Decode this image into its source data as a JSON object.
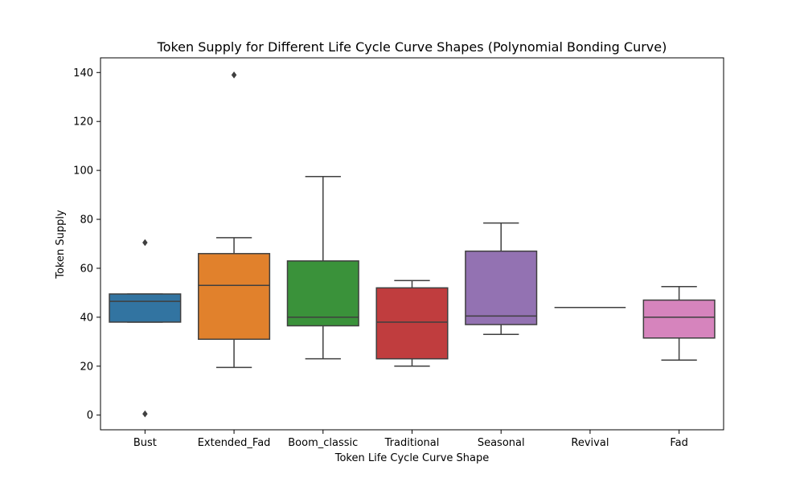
{
  "chart_data": {
    "type": "box",
    "title": "Token Supply for Different Life Cycle Curve Shapes (Polynomial Bonding Curve)",
    "xlabel": "Token Life Cycle Curve Shape",
    "ylabel": "Token Supply",
    "ylim": [
      -6,
      146
    ],
    "yticks": [
      0,
      20,
      40,
      60,
      80,
      100,
      120,
      140
    ],
    "categories": [
      "Bust",
      "Extended_Fad",
      "Boom_classic",
      "Traditional",
      "Seasonal",
      "Revival",
      "Fad"
    ],
    "boxes": [
      {
        "category": "Bust",
        "color": "#3274a1",
        "whisker_low": 38,
        "q1": 38,
        "median": 46.5,
        "q3": 49.5,
        "whisker_high": 49.5,
        "outliers": [
          70.5,
          0.5
        ]
      },
      {
        "category": "Extended_Fad",
        "color": "#e1812c",
        "whisker_low": 19.5,
        "q1": 31,
        "median": 53,
        "q3": 66,
        "whisker_high": 72.5,
        "outliers": [
          139
        ]
      },
      {
        "category": "Boom_classic",
        "color": "#3a923a",
        "whisker_low": 23,
        "q1": 36.5,
        "median": 40,
        "q3": 63,
        "whisker_high": 97.5,
        "outliers": []
      },
      {
        "category": "Traditional",
        "color": "#c03d3e",
        "whisker_low": 20,
        "q1": 23,
        "median": 38,
        "q3": 52,
        "whisker_high": 55,
        "outliers": []
      },
      {
        "category": "Seasonal",
        "color": "#9372b2",
        "whisker_low": 33,
        "q1": 37,
        "median": 40.5,
        "q3": 67,
        "whisker_high": 78.5,
        "outliers": []
      },
      {
        "category": "Revival",
        "color": "#845b53",
        "whisker_low": 44,
        "q1": 44,
        "median": 44,
        "q3": 44,
        "whisker_high": 44,
        "outliers": []
      },
      {
        "category": "Fad",
        "color": "#d684bd",
        "whisker_low": 22.5,
        "q1": 31.5,
        "median": 40,
        "q3": 47,
        "whisker_high": 52.5,
        "outliers": []
      }
    ],
    "grid": false,
    "legend": "none"
  }
}
